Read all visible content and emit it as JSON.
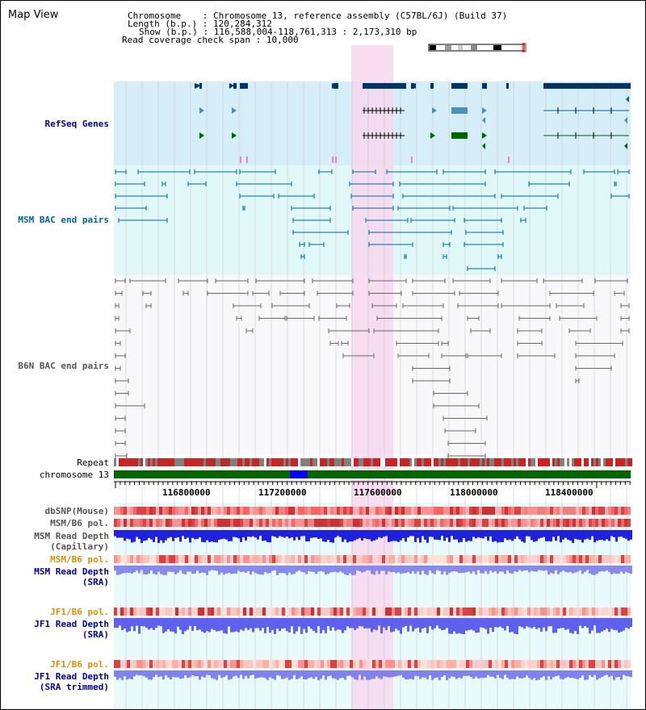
{
  "page": {
    "title": "Map View"
  },
  "info": {
    "chromosome_label": "Chromosome",
    "chromosome_value": "Chromosome 13, reference assembly (C57BL/6J) (Build 37)",
    "length_label": "Length (b.p.)",
    "length_value": "120,284,312",
    "show_label": "Show (b.p.)",
    "show_value": "116,588,004-118,761,313 : 2,173,310 bp",
    "coverage_label": "Read coverage check span",
    "coverage_value": "10,000"
  },
  "tracks": {
    "refseq": "RefSeq Genes",
    "msm_bac": "MSM BAC end pairs",
    "b6n_bac": "B6N BAC end pairs",
    "repeat": "Repeat",
    "chromosome": "chromosome 13",
    "dbsnp": "dbSNP(Mouse)",
    "msm_b6_pol": "MSM/B6 pol.",
    "msm_read_depth": "MSM Read Depth",
    "capillary": "(Capillary)",
    "msm_b6_pol_sra": "MSM/B6 pol.",
    "msm_read_depth_sra": "MSM Read Depth",
    "sra": "(SRA)",
    "jf1_b6_pol": "JF1/B6 pol.",
    "jf1_read_depth": "JF1 Read Depth",
    "jf1_sra": "(SRA)",
    "jf1_b6_pol_trim": "JF1/B6 pol.",
    "jf1_read_depth_trim": "JF1 Read Depth",
    "sra_trimmed": "(SRA trimmed)"
  },
  "axis": {
    "ticks": [
      "116800000",
      "117200000",
      "117600000",
      "118000000",
      "118400000"
    ]
  },
  "colors": {
    "refseq_bg": "#d6eef8",
    "msm_bg": "#e0f8f8",
    "highlight": "#f8d8f0",
    "gene_navy": "#003366",
    "gene_green": "#006600",
    "chromosome_green": "#006600",
    "band_blue": "#0000ff"
  }
}
